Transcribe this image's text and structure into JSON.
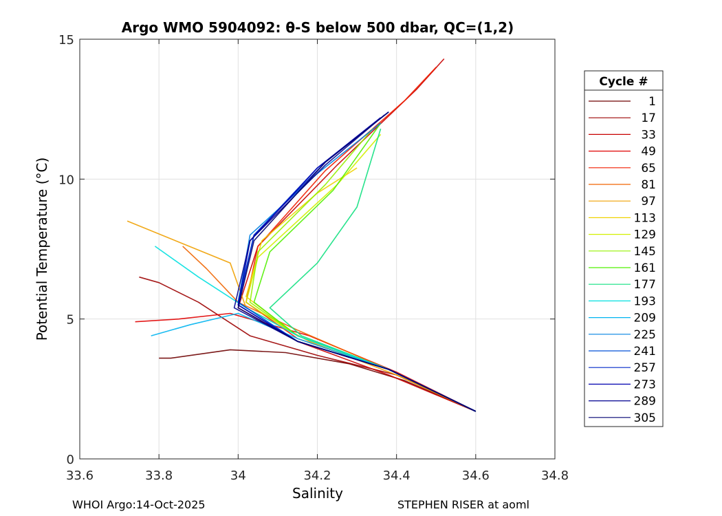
{
  "chart_data": {
    "type": "line",
    "title": "Argo WMO 5904092: θ-S below 500 dbar,  QC=(1,2)",
    "xlabel": "Salinity",
    "ylabel": "Potential Temperature (°C)",
    "xlim": [
      33.6,
      34.8
    ],
    "ylim": [
      0,
      15
    ],
    "xticks": [
      33.6,
      33.8,
      34,
      34.2,
      34.4,
      34.6,
      34.8
    ],
    "xtick_labels": [
      "33.6",
      "33.8",
      "34",
      "34.2",
      "34.4",
      "34.6",
      "34.8"
    ],
    "yticks": [
      0,
      5,
      10,
      15
    ],
    "ytick_labels": [
      "0",
      "5",
      "10",
      "15"
    ],
    "grid": true,
    "legend": {
      "title": "Cycle #",
      "placement": "right-outside",
      "entries": [
        {
          "label": "1",
          "color": "#6e0000"
        },
        {
          "label": "17",
          "color": "#9c0000"
        },
        {
          "label": "33",
          "color": "#c80000"
        },
        {
          "label": "49",
          "color": "#e00000"
        },
        {
          "label": "65",
          "color": "#f01e00"
        },
        {
          "label": "81",
          "color": "#f06400"
        },
        {
          "label": "97",
          "color": "#f0a000"
        },
        {
          "label": "113",
          "color": "#f0d200"
        },
        {
          "label": "129",
          "color": "#d2f000"
        },
        {
          "label": "145",
          "color": "#96f000"
        },
        {
          "label": "161",
          "color": "#50f000"
        },
        {
          "label": "177",
          "color": "#10e080"
        },
        {
          "label": "193",
          "color": "#00e0e0"
        },
        {
          "label": "209",
          "color": "#00b4f0"
        },
        {
          "label": "225",
          "color": "#0082e0"
        },
        {
          "label": "241",
          "color": "#0050d8"
        },
        {
          "label": "257",
          "color": "#0028c8"
        },
        {
          "label": "273",
          "color": "#0000b0"
        },
        {
          "label": "289",
          "color": "#000090"
        },
        {
          "label": "305",
          "color": "#000070"
        }
      ]
    },
    "series": [
      {
        "name": "1",
        "color": "#6e0000",
        "x": [
          34.6,
          34.42,
          34.28,
          34.12,
          33.98,
          33.83,
          33.8
        ],
        "y": [
          1.7,
          2.8,
          3.4,
          3.8,
          3.9,
          3.6,
          3.6
        ]
      },
      {
        "name": "17",
        "color": "#9c0000",
        "x": [
          34.6,
          34.4,
          34.2,
          34.03,
          33.9,
          33.8,
          33.75
        ],
        "y": [
          1.7,
          3.0,
          3.7,
          4.4,
          5.6,
          6.3,
          6.5
        ]
      },
      {
        "name": "33",
        "color": "#c80000",
        "x": [
          34.6,
          34.38,
          34.15,
          34.0,
          34.05,
          34.25,
          34.45,
          34.52
        ],
        "y": [
          1.7,
          3.0,
          4.2,
          5.4,
          7.6,
          10.5,
          13.2,
          14.3
        ]
      },
      {
        "name": "49",
        "color": "#e00000",
        "x": [
          34.6,
          34.4,
          34.18,
          33.98,
          33.85,
          33.74
        ],
        "y": [
          1.7,
          3.1,
          4.4,
          5.2,
          5.0,
          4.9
        ]
      },
      {
        "name": "65",
        "color": "#f01e00",
        "x": [
          34.6,
          34.38,
          34.15,
          34.02,
          34.05,
          34.22,
          34.42,
          34.5
        ],
        "y": [
          1.7,
          3.2,
          4.3,
          5.6,
          7.6,
          10.3,
          12.8,
          14.0
        ]
      },
      {
        "name": "81",
        "color": "#f06400",
        "x": [
          34.6,
          34.38,
          34.15,
          34.0,
          33.92,
          33.86
        ],
        "y": [
          1.7,
          3.2,
          4.6,
          5.6,
          6.8,
          7.6
        ]
      },
      {
        "name": "97",
        "color": "#f0a000",
        "x": [
          34.6,
          34.4,
          34.18,
          34.02,
          33.98,
          33.72
        ],
        "y": [
          1.7,
          3.0,
          4.2,
          5.4,
          7.0,
          8.5
        ]
      },
      {
        "name": "113",
        "color": "#f0d200",
        "x": [
          34.6,
          34.38,
          34.15,
          34.02,
          34.06,
          34.2,
          34.3
        ],
        "y": [
          1.7,
          3.2,
          4.4,
          5.8,
          7.8,
          9.5,
          10.4
        ]
      },
      {
        "name": "129",
        "color": "#d2f000",
        "x": [
          34.6,
          34.38,
          34.15,
          34.02,
          34.05,
          34.25,
          34.36
        ],
        "y": [
          1.7,
          3.2,
          4.4,
          5.6,
          7.2,
          9.8,
          11.6
        ]
      },
      {
        "name": "145",
        "color": "#96f000",
        "x": [
          34.6,
          34.38,
          34.15,
          34.03,
          34.05,
          34.22,
          34.34
        ],
        "y": [
          1.7,
          3.2,
          4.4,
          5.6,
          7.4,
          9.8,
          11.8
        ]
      },
      {
        "name": "161",
        "color": "#50f000",
        "x": [
          34.6,
          34.38,
          34.15,
          34.04,
          34.08,
          34.24,
          34.36
        ],
        "y": [
          1.7,
          3.2,
          4.4,
          5.6,
          7.4,
          9.6,
          12.0
        ]
      },
      {
        "name": "177",
        "color": "#10e080",
        "x": [
          34.6,
          34.38,
          34.16,
          34.08,
          34.2,
          34.3,
          34.36
        ],
        "y": [
          1.7,
          3.2,
          4.4,
          5.4,
          7.0,
          9.0,
          11.8
        ]
      },
      {
        "name": "193",
        "color": "#00e0e0",
        "x": [
          34.6,
          34.38,
          34.15,
          34.02,
          33.9,
          33.79
        ],
        "y": [
          1.7,
          3.2,
          4.4,
          5.4,
          6.5,
          7.6
        ]
      },
      {
        "name": "209",
        "color": "#00b4f0",
        "x": [
          34.6,
          34.38,
          34.15,
          34.0,
          33.88,
          33.78
        ],
        "y": [
          1.7,
          3.2,
          4.3,
          5.2,
          4.8,
          4.4
        ]
      },
      {
        "name": "225",
        "color": "#0082e0",
        "x": [
          34.6,
          34.38,
          34.15,
          34.0,
          34.03,
          34.2,
          34.36
        ],
        "y": [
          1.7,
          3.2,
          4.2,
          5.6,
          8.0,
          10.2,
          12.0
        ]
      },
      {
        "name": "241",
        "color": "#0050d8",
        "x": [
          34.6,
          34.38,
          34.15,
          34.0,
          34.04,
          34.2,
          34.38
        ],
        "y": [
          1.7,
          3.2,
          4.2,
          5.6,
          8.0,
          10.4,
          12.4
        ]
      },
      {
        "name": "257",
        "color": "#0028c8",
        "x": [
          34.6,
          34.38,
          34.15,
          34.0,
          34.04,
          34.22,
          34.38
        ],
        "y": [
          1.7,
          3.2,
          4.2,
          5.5,
          8.0,
          10.6,
          12.4
        ]
      },
      {
        "name": "273",
        "color": "#0000b0",
        "x": [
          34.6,
          34.38,
          34.15,
          34.0,
          34.03,
          34.2,
          34.36
        ],
        "y": [
          1.7,
          3.2,
          4.2,
          5.5,
          7.8,
          10.4,
          12.2
        ]
      },
      {
        "name": "289",
        "color": "#000090",
        "x": [
          34.6,
          34.38,
          34.15,
          33.99,
          34.03,
          34.22,
          34.37
        ],
        "y": [
          1.7,
          3.2,
          4.2,
          5.4,
          7.8,
          10.5,
          12.3
        ]
      },
      {
        "name": "305",
        "color": "#000070",
        "x": [
          34.6,
          34.38,
          34.15,
          34.0,
          34.04,
          34.22,
          34.38
        ],
        "y": [
          1.7,
          3.2,
          4.2,
          5.4,
          7.8,
          10.6,
          12.4
        ]
      }
    ]
  },
  "footer": {
    "left": "WHOI Argo:14-Oct-2025",
    "right": "STEPHEN RISER at aoml"
  }
}
